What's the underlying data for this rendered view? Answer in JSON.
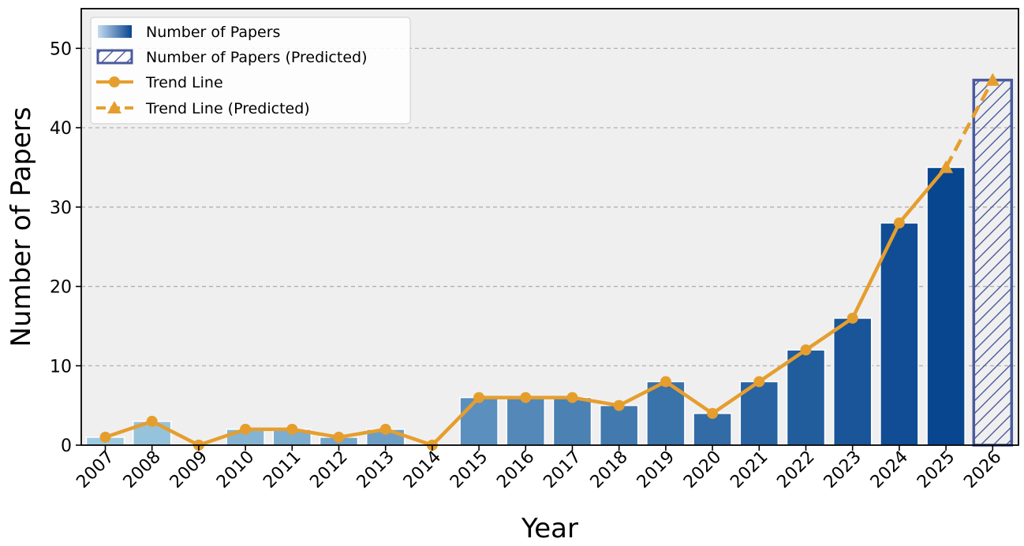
{
  "chart_data": {
    "type": "bar",
    "xlabel": "Year",
    "ylabel": "Number of Papers",
    "ylim": [
      0,
      55
    ],
    "yticks": [
      0,
      10,
      20,
      30,
      40,
      50
    ],
    "grid": "horizontal dashed",
    "legend_position": "top-left",
    "categories": [
      "2007",
      "2008",
      "2009",
      "2010",
      "2011",
      "2012",
      "2013",
      "2014",
      "2015",
      "2016",
      "2017",
      "2018",
      "2019",
      "2020",
      "2021",
      "2022",
      "2023",
      "2024",
      "2025",
      "2026"
    ],
    "values": [
      1,
      3,
      0,
      2,
      2,
      1,
      2,
      0,
      6,
      6,
      6,
      5,
      8,
      4,
      8,
      12,
      16,
      28,
      35,
      46
    ],
    "predicted_from_index": 19,
    "legend": [
      {
        "label": "Number of Papers",
        "kind": "bar-gradient"
      },
      {
        "label": "Number of Papers (Predicted)",
        "kind": "bar-hatched"
      },
      {
        "label": "Trend Line",
        "kind": "line-circle"
      },
      {
        "label": "Trend Line (Predicted)",
        "kind": "line-dashed-triangle"
      }
    ],
    "colors": {
      "bar_light": "#9ecae1",
      "bar_dark": "#08468f",
      "predicted_edge": "#4a5a9c",
      "trend": "#e59e2e",
      "plot_bg": "#efefef",
      "grid": "#b0b0b0"
    }
  }
}
